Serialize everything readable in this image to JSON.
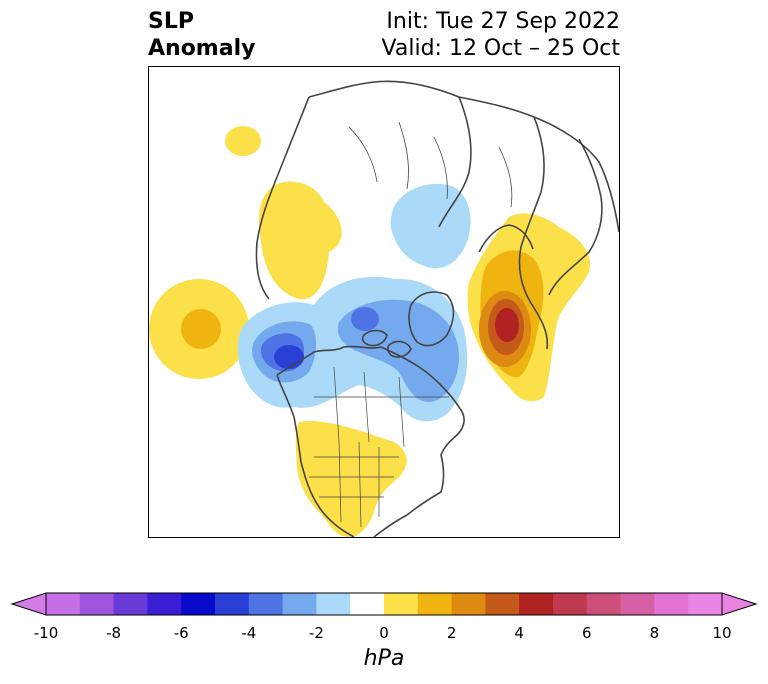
{
  "title": {
    "left_line1": "SLP",
    "left_line2": "Anomaly",
    "right_line1": "Init: Tue 27 Sep 2022",
    "right_line2": "Valid: 12 Oct – 25 Oct"
  },
  "colorbar": {
    "unit": "hPa",
    "ticks": [
      "-10",
      "-8",
      "-6",
      "-4",
      "-2",
      "0",
      "2",
      "4",
      "6",
      "8",
      "10"
    ],
    "levels": [
      -10,
      -9,
      -8,
      -7,
      -6,
      -5,
      -4,
      -3,
      -2,
      -1,
      1,
      2,
      3,
      4,
      5,
      6,
      7,
      8,
      9,
      10
    ],
    "colors": [
      "#c46fe5",
      "#9e55dd",
      "#6a3ad8",
      "#3a1fd4",
      "#0a0acd",
      "#2a3fd6",
      "#4d73e4",
      "#75a9ee",
      "#aadaf8",
      "#ffffff",
      "#fbe04a",
      "#f0b410",
      "#dc8a12",
      "#c35a1a",
      "#b02222",
      "#bf3a4e",
      "#cb4f78",
      "#d660a6",
      "#e374d4",
      "#e985e4"
    ],
    "extend_low_color": "#d27ce6",
    "extend_high_color": "#e982e0"
  },
  "map": {
    "projection": "north-polar-stereographic",
    "anomaly_features": [
      {
        "name": "positive-anomaly-northeast-pacific",
        "peak_hpa": 3
      },
      {
        "name": "negative-anomaly-gulf-of-alaska",
        "peak_hpa": -6
      },
      {
        "name": "negative-anomaly-canadian-arctic",
        "peak_hpa": -4
      },
      {
        "name": "positive-anomaly-north-atlantic-europe",
        "peak_hpa": 6
      },
      {
        "name": "negative-anomaly-eurasian-arctic",
        "peak_hpa": -2
      },
      {
        "name": "positive-anomaly-siberia",
        "peak_hpa": 2
      },
      {
        "name": "positive-anomaly-central-usa",
        "peak_hpa": 2
      }
    ]
  }
}
